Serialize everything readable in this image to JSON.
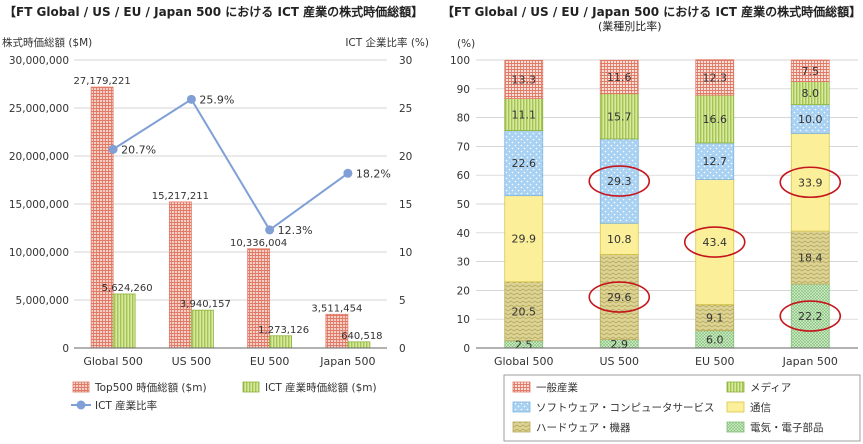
{
  "left_chart": {
    "title": "【FT Global / US / EU / Japan 500 における ICT 産業の株式時価総額】",
    "y_left_label": "株式時価総額 ($M)",
    "y_right_label": "ICT 企業比率 (%)",
    "legend": {
      "top500": "Top500 時価総額 ($m)",
      "ict": "ICT 産業時価総額 ($m)",
      "ratio": "ICT 産業比率"
    }
  },
  "right_chart": {
    "title": "【FT Global / US / EU / Japan 500 における ICT 産業の株式時価総額】",
    "subtitle": "(業種別比率)",
    "y_label": "(%)",
    "legend": {
      "general": "一般産業",
      "media": "メディア",
      "software": "ソフトウェア・コンピュータサービス",
      "telecom": "通信",
      "hardware": "ハードウェア・機器",
      "electrical": "電気・電子部品"
    }
  },
  "chart_data": [
    {
      "type": "bar",
      "categories": [
        "Global 500",
        "US 500",
        "EU 500",
        "Japan 500"
      ],
      "series": [
        {
          "name": "Top500 時価総額 ($m)",
          "axis": "left",
          "values": [
            27179221,
            15217211,
            10336004,
            3511454
          ],
          "labels": [
            "27,179,221",
            "15,217,211",
            "10,336,004",
            "3,511,454"
          ]
        },
        {
          "name": "ICT 産業時価総額 ($m)",
          "axis": "left",
          "values": [
            5624260,
            3940157,
            1273126,
            640518
          ],
          "labels": [
            "5,624,260",
            "3,940,157",
            "1,273,126",
            "640,518"
          ]
        },
        {
          "name": "ICT 産業比率",
          "type": "line",
          "axis": "right",
          "values": [
            20.7,
            25.9,
            12.3,
            18.2
          ],
          "labels": [
            "20.7%",
            "25.9%",
            "12.3%",
            "18.2%"
          ]
        }
      ],
      "ylim_left": [
        0,
        30000000
      ],
      "yticks_left": [
        "0",
        "5,000,000",
        "10,000,000",
        "15,000,000",
        "20,000,000",
        "25,000,000",
        "30,000,000"
      ],
      "ylim_right": [
        0,
        30
      ],
      "yticks_right": [
        "0",
        "5",
        "10",
        "15",
        "20",
        "25",
        "30"
      ],
      "colors": {
        "top500": "#e8907f",
        "ict": "#bcd86a",
        "ratio": "#7f9fd6"
      }
    },
    {
      "type": "bar",
      "stacked": true,
      "categories": [
        "Global 500",
        "US 500",
        "EU 500",
        "Japan 500"
      ],
      "series": [
        {
          "name": "電気・電子部品",
          "values": [
            2.5,
            2.9,
            6.0,
            22.2
          ],
          "labels": [
            "2.5",
            "2.9",
            "6.0",
            "22.2"
          ]
        },
        {
          "name": "ハードウェア・機器",
          "values": [
            20.5,
            29.6,
            9.1,
            18.4
          ],
          "labels": [
            "20.5",
            "29.6",
            "9.1",
            "18.4"
          ]
        },
        {
          "name": "通信",
          "values": [
            29.9,
            10.8,
            43.4,
            33.9
          ],
          "labels": [
            "29.9",
            "10.8",
            "43.4",
            "33.9"
          ]
        },
        {
          "name": "ソフトウェア・コンピュータサービス",
          "values": [
            22.6,
            29.3,
            12.7,
            10.0
          ],
          "labels": [
            "22.6",
            "29.3",
            "12.7",
            "10.0"
          ]
        },
        {
          "name": "メディア",
          "values": [
            11.1,
            15.7,
            16.6,
            8.0
          ],
          "labels": [
            "11.1",
            "15.7",
            "16.6",
            "8.0"
          ]
        },
        {
          "name": "一般産業",
          "values": [
            13.3,
            11.6,
            12.3,
            7.5
          ],
          "labels": [
            "13.3",
            "11.6",
            "12.3",
            "7.5"
          ]
        }
      ],
      "highlighted": [
        {
          "category": "US 500",
          "series": "ハードウェア・機器"
        },
        {
          "category": "US 500",
          "series": "ソフトウェア・コンピュータサービス"
        },
        {
          "category": "EU 500",
          "series": "通信"
        },
        {
          "category": "Japan 500",
          "series": "電気・電子部品"
        },
        {
          "category": "Japan 500",
          "series": "通信"
        }
      ],
      "ylim": [
        0,
        100
      ],
      "yticks": [
        "0",
        "10",
        "20",
        "30",
        "40",
        "50",
        "60",
        "70",
        "80",
        "90",
        "100"
      ],
      "colors": {
        "一般産業": "#f2b3a6",
        "メディア": "#bcd86a",
        "ソフトウェア・コンピュータサービス": "#a9d2f2",
        "通信": "#fcef9a",
        "ハードウェア・機器": "#d9cf8a",
        "電気・電子部品": "#b9dfb1",
        "highlight": "#c4161c"
      }
    }
  ]
}
